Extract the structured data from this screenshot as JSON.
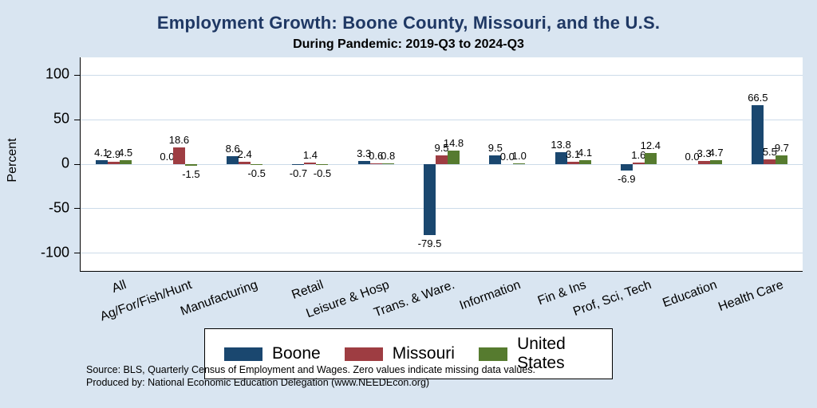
{
  "header": {
    "title": "Employment Growth: Boone County, Missouri, and the U.S.",
    "subtitle": "During Pandemic: 2019-Q3 to 2024-Q3"
  },
  "notes": {
    "source": "Source: BLS, Quarterly Census of Employment and Wages. Zero values indicate missing data values.",
    "produced_by": "Produced by: National Economic Education Delegation (www.NEEDEcon.org)"
  },
  "colors": {
    "background": "#d9e5f1",
    "plot_background": "#ffffff",
    "title": "#1f3864",
    "gridline": "#ccdbe9",
    "boone": "#1a476f",
    "missouri": "#9e3d42",
    "united_states": "#567b2f"
  },
  "chart_data": {
    "type": "bar",
    "title": "Employment Growth: Boone County, Missouri, and the U.S.",
    "subtitle": "During Pandemic: 2019-Q3 to 2024-Q3",
    "xlabel": "",
    "ylabel": "Percent",
    "ylim": [
      -120,
      120
    ],
    "yticks": [
      100,
      50,
      0,
      -50,
      -100
    ],
    "grid": true,
    "legend_position": "bottom",
    "categories": [
      "All",
      "Ag/For/Fish/Hunt",
      "Manufacturing",
      "Retail",
      "Leisure & Hosp",
      "Trans. & Ware.",
      "Information",
      "Fin & Ins",
      "Prof, Sci, Tech",
      "Education",
      "Health Care"
    ],
    "series": [
      {
        "name": "Boone",
        "color": "#1a476f",
        "values": [
          4.1,
          0.0,
          8.6,
          -0.7,
          3.3,
          -79.5,
          9.5,
          13.8,
          -6.9,
          0.0,
          66.5
        ]
      },
      {
        "name": "Missouri",
        "color": "#9e3d42",
        "values": [
          2.9,
          18.6,
          2.4,
          1.4,
          0.6,
          9.5,
          0.0,
          3.1,
          1.6,
          3.3,
          5.5
        ]
      },
      {
        "name": "United States",
        "color": "#567b2f",
        "values": [
          4.5,
          -1.5,
          -0.5,
          -0.5,
          0.8,
          14.8,
          1.0,
          4.1,
          12.4,
          4.7,
          9.7
        ]
      }
    ]
  }
}
